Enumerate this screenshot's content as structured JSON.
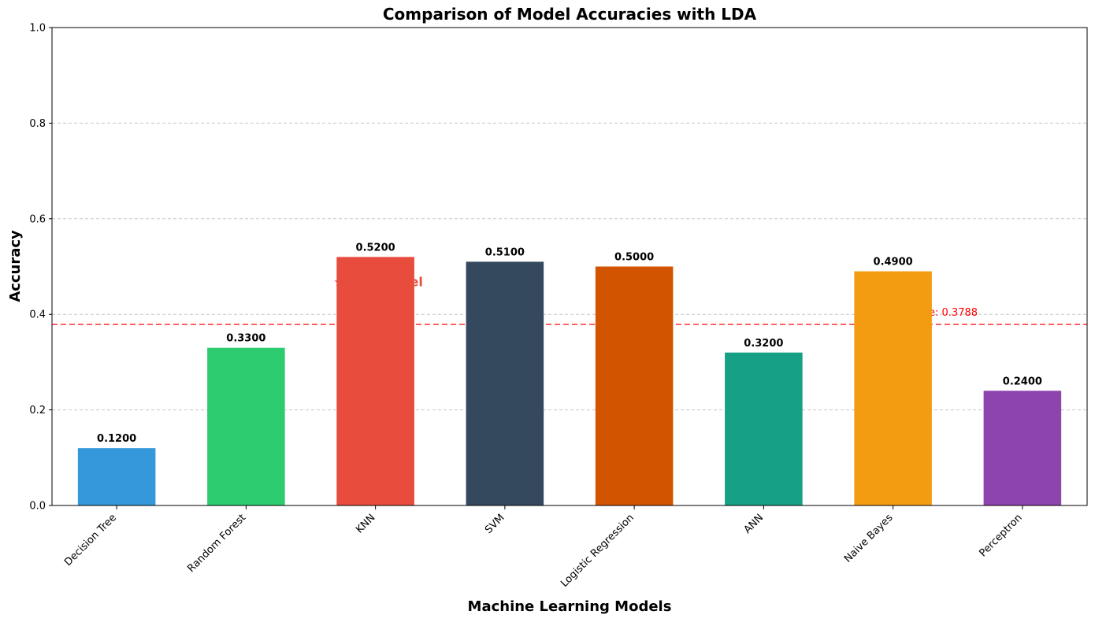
{
  "chart_data": {
    "type": "bar",
    "title": "Comparison of Model Accuracies with LDA",
    "xlabel": "Machine Learning Models",
    "ylabel": "Accuracy",
    "ylim": [
      0,
      1
    ],
    "yticks": [
      "0.0",
      "0.2",
      "0.4",
      "0.6",
      "0.8",
      "1.0"
    ],
    "grid": "y-dashed",
    "categories": [
      "Decision Tree",
      "Random Forest",
      "KNN",
      "SVM",
      "Logistic Regression",
      "ANN",
      "Naive Bayes",
      "Perceptron"
    ],
    "values": [
      0.12,
      0.33,
      0.52,
      0.51,
      0.5,
      0.32,
      0.49,
      0.24
    ],
    "value_labels": [
      "0.1200",
      "0.3300",
      "0.5200",
      "0.5100",
      "0.5000",
      "0.3200",
      "0.4900",
      "0.2400"
    ],
    "colors": [
      "#3498db",
      "#2ecc71",
      "#e74c3c",
      "#34495e",
      "#d35400",
      "#16a085",
      "#f39c12",
      "#8e44ad"
    ],
    "average": {
      "value": 0.3788,
      "label": "Average: 0.3788",
      "color": "#ff0000"
    },
    "annotation": {
      "text": "★ Best Model",
      "category": "KNN",
      "color": "#e74c3c"
    }
  }
}
